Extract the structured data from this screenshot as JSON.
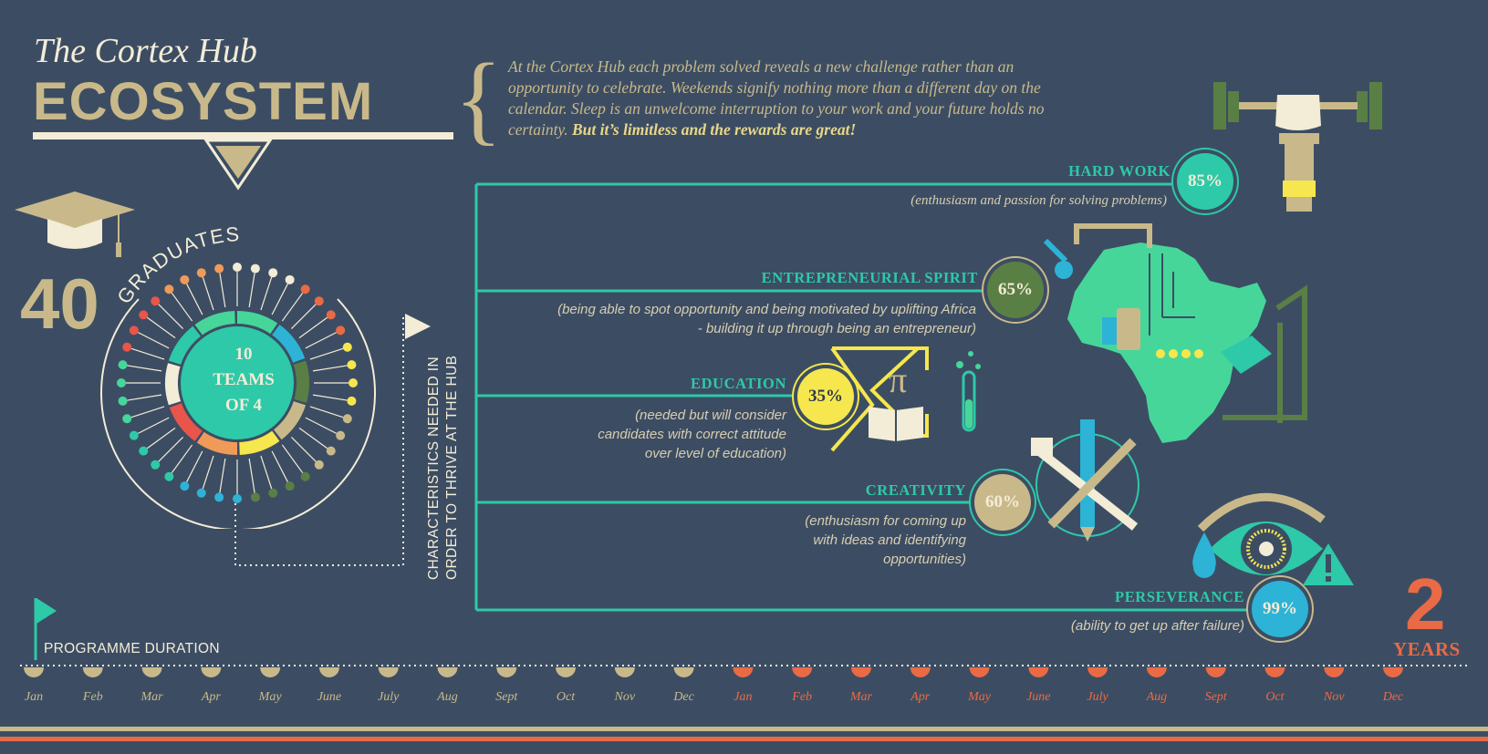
{
  "header": {
    "title_line1": "The Cortex Hub",
    "title_line2": "ECOSYSTEM",
    "intro_text": "At the Cortex Hub each problem solved reveals a new challenge rather than an opportunity to celebrate. Weekends signify nothing more than a different day on the calendar. Sleep is an unwelcome interruption to your work and your future holds no certainty.",
    "intro_emphasis": "But it’s limitless and the rewards are great!"
  },
  "graduates": {
    "count": "40",
    "label": "GRADUATES",
    "teams_line1": "10",
    "teams_line2": "TEAMS",
    "teams_line3": "OF 4"
  },
  "characteristics_heading": "CHARACTERISTICS NEEDED IN ORDER TO THRIVE AT THE HUB",
  "characteristics": [
    {
      "name": "HARD WORK",
      "percent": "85%",
      "description": "(enthusiasm and passion for solving problems)",
      "color": "#2ec9a8"
    },
    {
      "name": "ENTREPRENEURIAL SPIRIT",
      "percent": "65%",
      "description": "(being able to spot opportunity and being motivated by uplifting Africa - building it up through being an entrepreneur)",
      "color": "#5a7f45"
    },
    {
      "name": "EDUCATION",
      "percent": "35%",
      "description": "(needed but will consider candidates with correct attitude over level of education)",
      "color": "#f5e74d"
    },
    {
      "name": "CREATIVITY",
      "percent": "60%",
      "description": "(enthusiasm for coming up with ideas and identifying opportunities)",
      "color": "#c9b98a"
    },
    {
      "name": "PERSEVERANCE",
      "percent": "99%",
      "description": "(ability to get up after failure)",
      "color": "#2db3d6"
    }
  ],
  "timeline": {
    "label": "PROGRAMME DURATION",
    "months": [
      "Jan",
      "Feb",
      "Mar",
      "Apr",
      "May",
      "June",
      "July",
      "Aug",
      "Sept",
      "Oct",
      "Nov",
      "Dec",
      "Jan",
      "Feb",
      "Mar",
      "Apr",
      "May",
      "June",
      "July",
      "Aug",
      "Sept",
      "Oct",
      "Nov",
      "Dec"
    ],
    "duration_number": "2",
    "duration_unit": "YEARS"
  },
  "icons": [
    "graduation-cap-icon",
    "dumbbell-icon",
    "africa-circuit-icon",
    "sigma-pi-icon",
    "book-icon",
    "test-tube-icon",
    "tools-icon",
    "pencil-icon",
    "eye-icon",
    "warning-icon",
    "water-drop-icon",
    "flag-icon"
  ],
  "colors": {
    "background": "#3c4d63",
    "teal": "#2ec9a8",
    "gold": "#c9b98a",
    "cream": "#f3ecd6",
    "orange": "#ea6a45",
    "yellow": "#f5e74d",
    "green": "#5a7f45"
  }
}
